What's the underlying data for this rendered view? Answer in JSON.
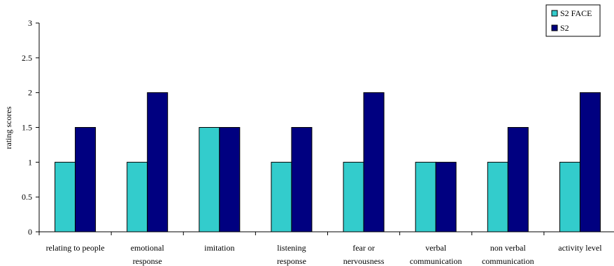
{
  "chart_data": {
    "type": "bar",
    "categories": [
      [
        "relating to people"
      ],
      [
        "emotional",
        "response"
      ],
      [
        "imitation"
      ],
      [
        "listening",
        "response"
      ],
      [
        "fear or",
        "nervousness"
      ],
      [
        "verbal",
        "communication"
      ],
      [
        "non verbal",
        "communication"
      ],
      [
        "activity level"
      ]
    ],
    "series": [
      {
        "name": "S2 FACE",
        "color": "#33CCCC",
        "values": [
          1,
          1,
          1.5,
          1,
          1,
          1,
          1,
          1
        ]
      },
      {
        "name": "S2",
        "color": "#000080",
        "values": [
          1.5,
          2,
          1.5,
          1.5,
          2,
          1,
          1.5,
          2
        ]
      }
    ],
    "ylabel": "rating scores",
    "ylim": [
      0,
      3
    ],
    "yticks": [
      "0",
      "0.5",
      "1",
      "1.5",
      "2",
      "2.5",
      "3"
    ],
    "yticks_values": [
      0,
      0.5,
      1,
      1.5,
      2,
      2.5,
      3
    ],
    "grid": false,
    "legend_position": "top-right"
  }
}
